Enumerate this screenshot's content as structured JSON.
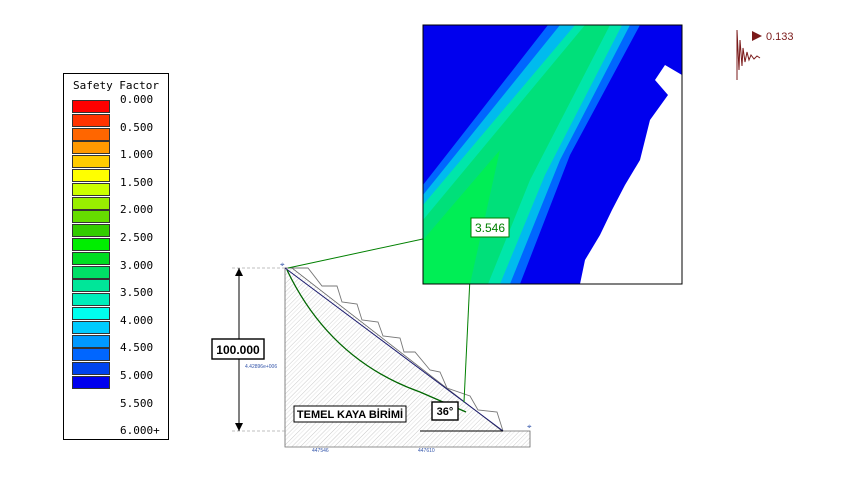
{
  "legend": {
    "title": "Safety Factor",
    "labels": [
      "0.000",
      "0.500",
      "1.000",
      "1.500",
      "2.000",
      "2.500",
      "3.000",
      "3.500",
      "4.000",
      "4.500",
      "5.000",
      "5.500",
      "6.000+"
    ],
    "colors": [
      "#ff0000",
      "#ff3300",
      "#ff6600",
      "#ff9900",
      "#ffcc00",
      "#ffff00",
      "#ccff00",
      "#99ee00",
      "#66dd00",
      "#33cc00",
      "#00ee00",
      "#00dd22",
      "#00e066",
      "#00e699",
      "#00eebb",
      "#00ffee",
      "#00ccff",
      "#0099ff",
      "#0066ff",
      "#0044ee",
      "#0000ee"
    ]
  },
  "dimension_label": "100.000",
  "angle_label": "36°",
  "unit_name": "TEMEL KAYA BİRİMİ",
  "safety_factor_value": "3.546",
  "seismic_value": "0.133",
  "small_labels": {
    "left_axis": "4.42896e+006",
    "bottom_left": "447546",
    "bottom_right": "447610"
  },
  "colors": {
    "slip_surface": "#006600",
    "callout_line": "#008000",
    "dimension": "#000000",
    "seismic": "#7a1a1a"
  }
}
